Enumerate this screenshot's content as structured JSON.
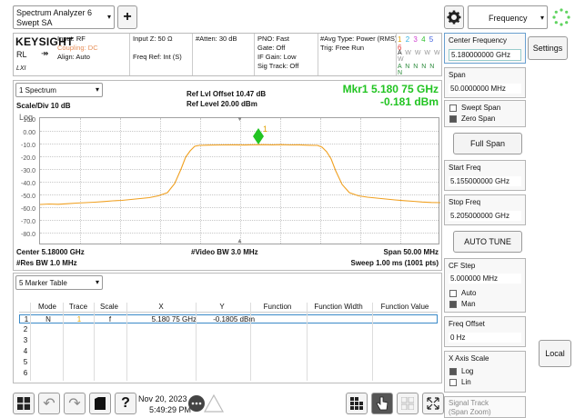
{
  "app": {
    "mode_line1": "Spectrum Analyzer 6",
    "mode_line2": "Swept SA",
    "add_label": "+",
    "settings_icon": "gear-icon",
    "menu_label": "Frequency",
    "status_icon": "busy-spinner-icon"
  },
  "info": {
    "brand": "KEYSIGHT",
    "rl": "RL",
    "lxi": "LXI",
    "input": "Input: RF",
    "coupling": "Coupling: DC",
    "align": "Align: Auto",
    "inputz": "Input Z: 50 Ω",
    "freqref": "Freq Ref: Int (S)",
    "atten": "#Atten: 30 dB",
    "pno": "PNO: Fast",
    "gate": "Gate: Off",
    "ifgain": "IF Gain: Low",
    "sigtrack": "Sig Track: Off",
    "avgtype": "#Avg Type: Power (RMS)",
    "trig": "Trig: Free Run",
    "trace_nums": [
      "1",
      "2",
      "3",
      "4",
      "5",
      "6"
    ],
    "trace_types": [
      "A",
      "W",
      "W",
      "W",
      "W",
      "W"
    ],
    "trace_dets": [
      "A",
      "N",
      "N",
      "N",
      "N",
      "N"
    ]
  },
  "plot": {
    "window_select": "1 Spectrum",
    "scale": "Scale/Div 10 dB",
    "log": "Log",
    "ref_offset": "Ref Lvl Offset 10.47 dB",
    "ref_level": "Ref Level 20.00 dBm",
    "mkr_freq": "Mkr1  5.180 75 GHz",
    "mkr_amp": "-0.181 dBm",
    "marker_label": "1",
    "ylabels": [
      "10.0",
      "0.00",
      "-10.0",
      "-20.0",
      "-30.0",
      "-40.0",
      "-50.0",
      "-60.0",
      "-70.0",
      "-80.0"
    ],
    "center": "Center 5.18000 GHz",
    "resbw": "#Res BW 1.0 MHz",
    "videobw": "#Video BW 3.0 MHz",
    "span": "Span 50.00 MHz",
    "sweep": "Sweep 1.00 ms (1001 pts)",
    "trace_color": "#f0a020"
  },
  "marker_table": {
    "select": "5 Marker Table",
    "headers": [
      "Mode",
      "Trace",
      "Scale",
      "X",
      "Y",
      "Function",
      "Function Width",
      "Function Value"
    ],
    "rows": [
      {
        "num": "1",
        "mode": "N",
        "trace": "1",
        "scale": "f",
        "x": "5.180 75 GHz",
        "y": "-0.1805 dBm",
        "fn": "",
        "fw": "",
        "fv": ""
      },
      {
        "num": "2",
        "mode": "",
        "trace": "",
        "scale": "",
        "x": "",
        "y": "",
        "fn": "",
        "fw": "",
        "fv": ""
      },
      {
        "num": "3",
        "mode": "",
        "trace": "",
        "scale": "",
        "x": "",
        "y": "",
        "fn": "",
        "fw": "",
        "fv": ""
      },
      {
        "num": "4",
        "mode": "",
        "trace": "",
        "scale": "",
        "x": "",
        "y": "",
        "fn": "",
        "fw": "",
        "fv": ""
      },
      {
        "num": "5",
        "mode": "",
        "trace": "",
        "scale": "",
        "x": "",
        "y": "",
        "fn": "",
        "fw": "",
        "fv": ""
      },
      {
        "num": "6",
        "mode": "",
        "trace": "",
        "scale": "",
        "x": "",
        "y": "",
        "fn": "",
        "fw": "",
        "fv": ""
      }
    ]
  },
  "softkeys": {
    "center_freq": "Center Frequency",
    "center_val": "5.180000000 GHz",
    "span": "Span",
    "span_val": "50.0000000 MHz",
    "swept": "Swept Span",
    "zero": "Zero Span",
    "full": "Full Span",
    "start": "Start Freq",
    "start_val": "5.155000000 GHz",
    "stop": "Stop Freq",
    "stop_val": "5.205000000 GHz",
    "autotune": "AUTO TUNE",
    "cfstep": "CF Step",
    "cfstep_val": "5.000000 MHz",
    "auto": "Auto",
    "man": "Man",
    "freqoffset": "Freq Offset",
    "freqoffset_val": "0 Hz",
    "xaxis": "X Axis Scale",
    "log": "Log",
    "lin": "Lin",
    "sigtrack": "Signal Track",
    "sigtrack_sub": "(Span Zoom)",
    "settings_tab": "Settings",
    "local": "Local"
  },
  "taskbar": {
    "date": "Nov 20, 2023",
    "time": "5:49:29 PM",
    "help": "?"
  }
}
